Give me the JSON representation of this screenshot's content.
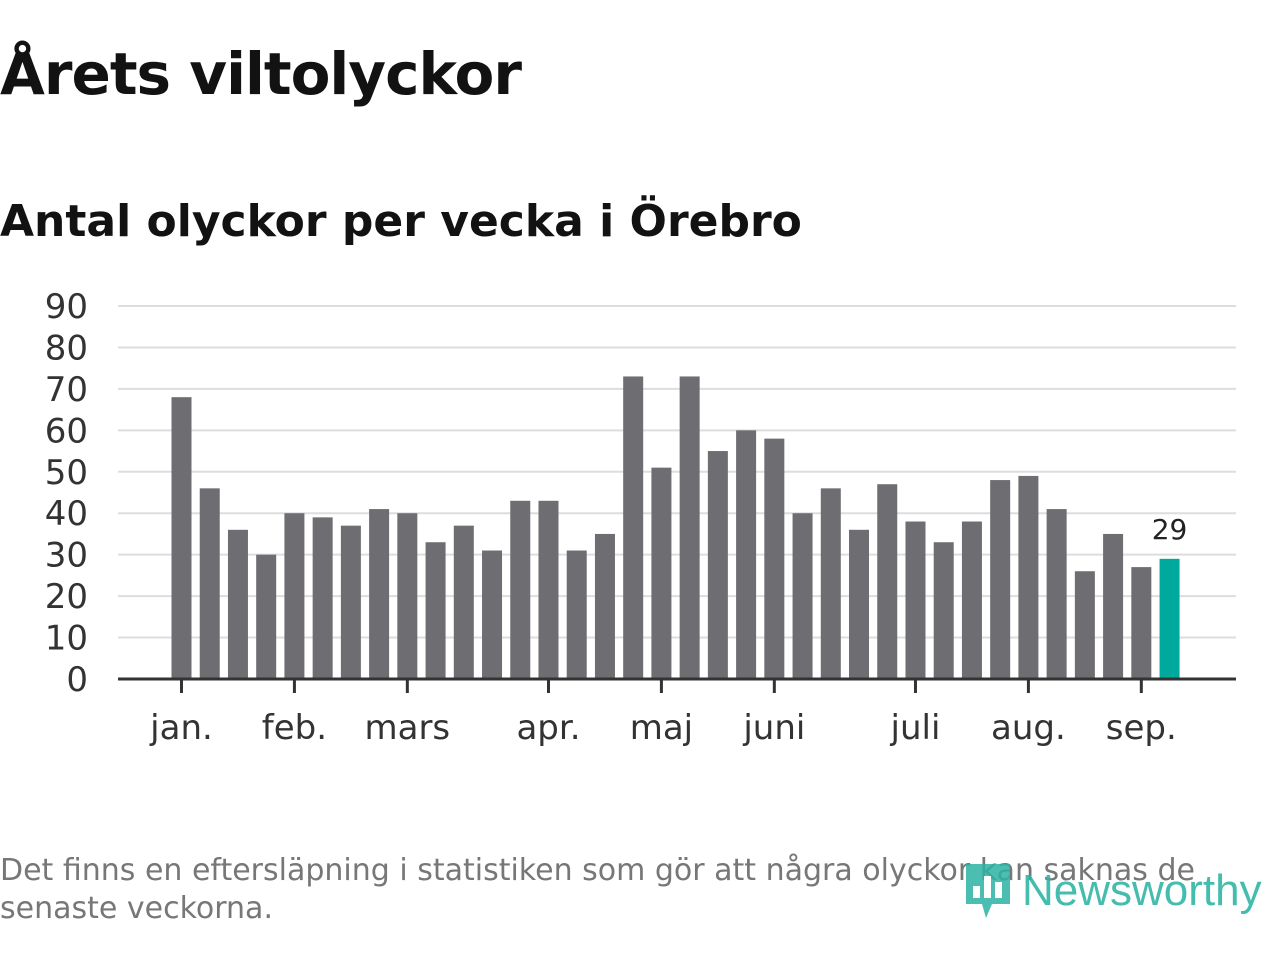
{
  "title": "Årets viltolyckor",
  "subtitle": "Antal olyckor per vecka i Örebro",
  "footnote": "Det finns en eftersläpning i statistiken som gör att några olyckor kan saknas de senaste veckorna.",
  "logo": {
    "text": "Newsworthy",
    "icon": "bar-chart-badge-icon"
  },
  "colors": {
    "bar": "#6d6d72",
    "highlight": "#00a99d",
    "grid": "#dddddd",
    "axis": "#333333"
  },
  "chart_data": {
    "type": "bar",
    "values": [
      68,
      46,
      36,
      30,
      40,
      39,
      37,
      41,
      40,
      33,
      37,
      31,
      43,
      43,
      31,
      35,
      73,
      51,
      73,
      55,
      60,
      58,
      40,
      46,
      36,
      47,
      38,
      33,
      38,
      48,
      49,
      41,
      26,
      35,
      27,
      29
    ],
    "highlight_last": true,
    "last_value_label": "29",
    "yticks": [
      0,
      10,
      20,
      30,
      40,
      50,
      60,
      70,
      80,
      90
    ],
    "ylim": [
      0,
      90
    ],
    "month_labels": [
      {
        "label": "jan.",
        "week": 0
      },
      {
        "label": "feb.",
        "week": 4
      },
      {
        "label": "mars",
        "week": 8
      },
      {
        "label": "apr.",
        "week": 13
      },
      {
        "label": "maj",
        "week": 17
      },
      {
        "label": "juni",
        "week": 21
      },
      {
        "label": "juli",
        "week": 26
      },
      {
        "label": "aug.",
        "week": 30
      },
      {
        "label": "sep.",
        "week": 34
      }
    ],
    "grid": true,
    "xlabel": "",
    "ylabel": ""
  }
}
